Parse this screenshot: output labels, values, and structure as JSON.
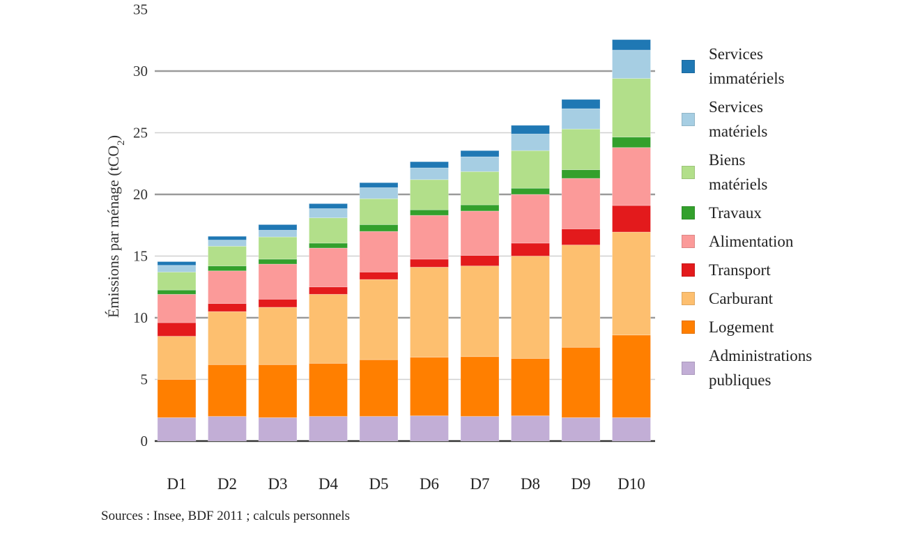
{
  "chart_data": {
    "type": "bar",
    "stacked": true,
    "title": "",
    "xlabel": "",
    "ylabel": "Émissions par ménage (tCO",
    "ylabel_subscript": "2",
    "ylabel_suffix": ")",
    "ylim": [
      0,
      35
    ],
    "yticks": [
      0,
      5,
      10,
      15,
      20,
      25,
      30,
      35
    ],
    "grid": true,
    "legend_position": "right",
    "categories": [
      "D1",
      "D2",
      "D3",
      "D4",
      "D5",
      "D6",
      "D7",
      "D8",
      "D9",
      "D10"
    ],
    "series": [
      {
        "name": "Administrations publiques",
        "color": "#c2aed6",
        "values": [
          1.9,
          2.0,
          1.9,
          2.0,
          2.0,
          2.05,
          2.0,
          2.05,
          1.9,
          1.9
        ]
      },
      {
        "name": "Logement",
        "color": "#ff7f00",
        "values": [
          3.1,
          4.2,
          4.3,
          4.3,
          4.6,
          4.75,
          4.85,
          4.65,
          5.7,
          6.7
        ]
      },
      {
        "name": "Carburant",
        "color": "#fdbf6f",
        "values": [
          3.5,
          4.3,
          4.65,
          5.6,
          6.5,
          7.3,
          7.35,
          8.3,
          8.3,
          8.35
        ]
      },
      {
        "name": "Transport",
        "color": "#e31a1c",
        "values": [
          1.1,
          0.65,
          0.65,
          0.6,
          0.6,
          0.65,
          0.85,
          1.05,
          1.3,
          2.15
        ]
      },
      {
        "name": "Alimentation",
        "color": "#fb9a99",
        "values": [
          2.3,
          2.65,
          2.85,
          3.15,
          3.3,
          3.55,
          3.6,
          3.95,
          4.1,
          4.7
        ]
      },
      {
        "name": "Travaux",
        "color": "#33a02c",
        "values": [
          0.35,
          0.4,
          0.4,
          0.4,
          0.55,
          0.45,
          0.5,
          0.5,
          0.7,
          0.85
        ]
      },
      {
        "name": "Biens matériels",
        "color": "#b2df8a",
        "values": [
          1.45,
          1.6,
          1.8,
          2.05,
          2.1,
          2.45,
          2.7,
          3.05,
          3.3,
          4.75
        ]
      },
      {
        "name": "Services matériels",
        "color": "#a6cee3",
        "values": [
          0.55,
          0.5,
          0.55,
          0.75,
          0.9,
          0.95,
          1.2,
          1.35,
          1.65,
          2.3
        ]
      },
      {
        "name": "Services immatériels",
        "color": "#1f78b4",
        "values": [
          0.3,
          0.3,
          0.45,
          0.4,
          0.4,
          0.5,
          0.5,
          0.7,
          0.75,
          0.85
        ]
      }
    ]
  },
  "legend": {
    "items": [
      {
        "line1": "Services",
        "line2": "immatériels",
        "color": "#1f78b4"
      },
      {
        "line1": "Services",
        "line2": "matériels",
        "color": "#a6cee3"
      },
      {
        "line1": "Biens",
        "line2": "matériels",
        "color": "#b2df8a"
      },
      {
        "line1": "Travaux",
        "line2": "",
        "color": "#33a02c"
      },
      {
        "line1": "Alimentation",
        "line2": "",
        "color": "#fb9a99"
      },
      {
        "line1": "Transport",
        "line2": "",
        "color": "#e31a1c"
      },
      {
        "line1": "Carburant",
        "line2": "",
        "color": "#fdbf6f"
      },
      {
        "line1": "Logement",
        "line2": "",
        "color": "#ff7f00"
      },
      {
        "line1": "Administrations",
        "line2": "publiques",
        "color": "#c2aed6"
      }
    ]
  },
  "source": "Sources : Insee, BDF 2011 ; calculs personnels"
}
